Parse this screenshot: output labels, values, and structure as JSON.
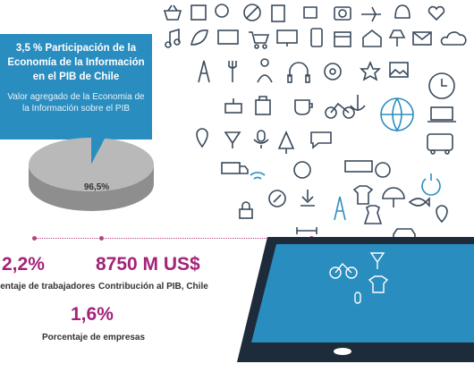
{
  "callout": {
    "title": "3,5 % Participación de la Economía de la Información en el PIB de Chile",
    "subtitle": "Valor agregado de la Economia de la Información sobre el PIB"
  },
  "chart_data": {
    "type": "pie",
    "slices": [
      {
        "label": "3,5%",
        "value": 3.5,
        "color": "#2a8dbf"
      },
      {
        "label": "96,5%",
        "value": 96.5,
        "color": "#b9b9b9"
      }
    ]
  },
  "stats": [
    {
      "value": "2,2%",
      "label": "Porcentaje de trabajadores"
    },
    {
      "value": "8750 M US$",
      "label": "Contribución al PIB, Chile"
    },
    {
      "value": "1,6%",
      "label": "Porcentaje de empresas"
    }
  ],
  "colors": {
    "accent": "#2a8dbf",
    "magenta": "#a3237a",
    "pie_gray": "#b9b9b9"
  },
  "illustration": {
    "device": "tablet-icon",
    "icons": [
      "camera-icon",
      "gear-icon",
      "music-icon",
      "plane-icon",
      "cloud-icon",
      "chat-icon",
      "mail-icon",
      "clock-icon",
      "globe-icon",
      "heart-icon",
      "tv-icon",
      "cart-icon",
      "phone-icon",
      "coffee-icon",
      "headphones-icon",
      "lock-icon",
      "leaf-icon",
      "power-icon",
      "star-icon",
      "home-icon",
      "calendar-icon",
      "dress-icon",
      "shirt-icon",
      "tower-icon",
      "keyboard-icon",
      "bicycle-icon",
      "compass-icon",
      "umbrella-icon"
    ]
  }
}
